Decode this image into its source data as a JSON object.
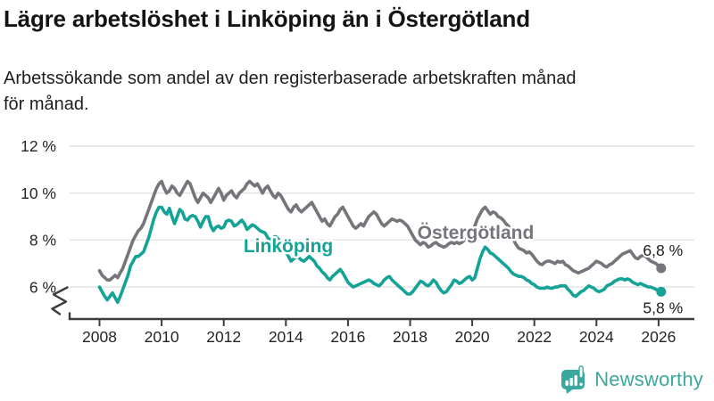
{
  "title": "Lägre arbetslöshet i Linköping än i Östergötland",
  "subtitle": "Arbetssökande som andel av den registerbaserade arbetskraften månad för månad.",
  "subtitle_lines": [
    "Arbetssökande som andel av den registerbaserade arbetskraften månad",
    "för månad."
  ],
  "logo": {
    "text": "Newsworthy",
    "icon": "newsworthy-speech-bubble-bar-chart-icon"
  },
  "colors": {
    "linkoping": "#14a396",
    "ostergotland": "#76757b",
    "grid": "#e4e4e4",
    "axis": "#3d3d3d",
    "text": "#252525",
    "logo_teal": "#3aa89f"
  },
  "chart_data": {
    "type": "line",
    "x_start": "2008-01",
    "x_end": "2026-02",
    "x_interval": "monthly",
    "x_ticks": [
      2008,
      2010,
      2012,
      2014,
      2016,
      2018,
      2020,
      2022,
      2024,
      2026
    ],
    "y_ticks": [
      {
        "value": 6,
        "label": "6 %"
      },
      {
        "value": 8,
        "label": "8 %"
      },
      {
        "value": 10,
        "label": "10 %"
      },
      {
        "value": 12,
        "label": "12 %"
      }
    ],
    "ylim": [
      4.6,
      12.5
    ],
    "axis_break": true,
    "grid": true,
    "legend_position": "inline-labels",
    "title": "",
    "xlabel": "",
    "ylabel": "",
    "series": [
      {
        "name": "Östergötland",
        "end_label": "6,8 %",
        "color": "#76757b",
        "values": [
          6.7,
          6.5,
          6.4,
          6.3,
          6.3,
          6.4,
          6.5,
          6.4,
          6.6,
          6.8,
          7.1,
          7.4,
          7.7,
          8.0,
          8.2,
          8.4,
          8.5,
          8.7,
          9.0,
          9.3,
          9.6,
          9.9,
          10.2,
          10.4,
          10.5,
          10.2,
          10.0,
          10.1,
          10.3,
          10.2,
          10.0,
          9.9,
          10.1,
          10.3,
          10.5,
          10.4,
          10.1,
          9.8,
          9.6,
          9.8,
          10.0,
          9.9,
          9.8,
          9.6,
          9.8,
          10.0,
          10.2,
          10.0,
          9.7,
          9.9,
          10.0,
          10.1,
          9.9,
          9.8,
          10.0,
          10.1,
          10.2,
          10.4,
          10.5,
          10.4,
          10.3,
          10.4,
          10.2,
          10.0,
          10.2,
          10.3,
          10.1,
          9.9,
          9.8,
          10.0,
          9.9,
          9.7,
          9.5,
          9.3,
          9.2,
          9.4,
          9.5,
          9.3,
          9.2,
          9.3,
          9.4,
          9.5,
          9.6,
          9.4,
          9.2,
          9.0,
          8.8,
          8.9,
          8.7,
          8.6,
          8.8,
          9.0,
          9.1,
          9.3,
          9.4,
          9.2,
          9.0,
          8.8,
          8.6,
          8.5,
          8.6,
          8.7,
          8.6,
          8.8,
          9.0,
          9.1,
          9.2,
          9.1,
          8.9,
          8.7,
          8.6,
          8.7,
          8.8,
          8.9,
          8.85,
          8.8,
          8.85,
          8.8,
          8.7,
          8.6,
          8.4,
          8.2,
          8.0,
          7.9,
          7.8,
          7.9,
          7.85,
          7.7,
          7.75,
          7.85,
          7.9,
          7.8,
          7.75,
          7.7,
          7.75,
          7.85,
          7.9,
          7.85,
          7.9,
          7.85,
          7.9,
          8.0,
          8.05,
          8.1,
          8.3,
          8.6,
          8.9,
          9.1,
          9.3,
          9.4,
          9.25,
          9.1,
          9.2,
          9.15,
          9.0,
          8.95,
          8.85,
          8.7,
          8.6,
          8.3,
          8.0,
          7.8,
          7.65,
          7.6,
          7.55,
          7.45,
          7.5,
          7.4,
          7.25,
          7.1,
          7.0,
          6.95,
          7.05,
          7.1,
          7.1,
          7.05,
          7.0,
          7.1,
          7.05,
          7.1,
          6.95,
          6.9,
          6.8,
          6.7,
          6.65,
          6.6,
          6.65,
          6.7,
          6.75,
          6.8,
          6.9,
          7.0,
          7.1,
          7.05,
          7.0,
          6.9,
          6.85,
          6.95,
          7.0,
          7.1,
          7.2,
          7.3,
          7.4,
          7.45,
          7.5,
          7.55,
          7.4,
          7.25,
          7.2,
          7.3,
          7.35,
          7.3,
          7.2,
          7.1,
          7.05,
          7.0,
          6.9,
          6.8
        ]
      },
      {
        "name": "Linköping",
        "end_label": "5,8 %",
        "color": "#14a396",
        "values": [
          6.0,
          5.8,
          5.6,
          5.45,
          5.6,
          5.75,
          5.55,
          5.35,
          5.6,
          5.9,
          6.2,
          6.5,
          6.9,
          7.1,
          7.3,
          7.3,
          7.4,
          7.5,
          7.8,
          8.1,
          8.5,
          8.9,
          9.2,
          9.4,
          9.4,
          9.2,
          9.1,
          9.35,
          9.0,
          8.7,
          9.0,
          9.3,
          9.2,
          8.9,
          8.85,
          9.0,
          9.05,
          9.0,
          8.8,
          8.55,
          8.8,
          9.0,
          9.0,
          8.6,
          8.4,
          8.55,
          8.6,
          8.5,
          8.55,
          8.8,
          8.85,
          8.8,
          8.6,
          8.65,
          8.75,
          8.85,
          8.7,
          8.45,
          8.55,
          8.65,
          8.6,
          8.5,
          8.4,
          8.35,
          8.3,
          8.1,
          8.0,
          8.1,
          8.15,
          8.05,
          7.9,
          7.7,
          7.5,
          7.3,
          7.1,
          7.2,
          7.3,
          7.25,
          7.15,
          7.1,
          7.2,
          7.3,
          7.2,
          7.1,
          6.9,
          6.8,
          6.65,
          6.55,
          6.4,
          6.3,
          6.45,
          6.55,
          6.65,
          6.75,
          6.6,
          6.4,
          6.2,
          6.1,
          6.0,
          6.05,
          6.1,
          6.15,
          6.2,
          6.25,
          6.3,
          6.25,
          6.15,
          6.1,
          6.05,
          6.15,
          6.3,
          6.4,
          6.45,
          6.3,
          6.2,
          6.1,
          6.0,
          5.9,
          5.8,
          5.7,
          5.7,
          5.8,
          5.95,
          6.1,
          6.25,
          6.2,
          6.1,
          6.05,
          6.15,
          6.3,
          6.2,
          6.0,
          5.85,
          5.75,
          5.8,
          5.95,
          6.1,
          6.3,
          6.25,
          6.15,
          6.2,
          6.3,
          6.4,
          6.45,
          6.3,
          6.4,
          6.8,
          7.2,
          7.5,
          7.7,
          7.6,
          7.45,
          7.4,
          7.3,
          7.2,
          7.1,
          7.0,
          6.9,
          6.8,
          6.65,
          6.55,
          6.5,
          6.45,
          6.45,
          6.4,
          6.3,
          6.25,
          6.15,
          6.1,
          6.0,
          5.95,
          5.95,
          5.95,
          6.0,
          5.95,
          5.95,
          6.0,
          6.0,
          6.05,
          6.05,
          6.05,
          5.9,
          5.8,
          5.65,
          5.6,
          5.7,
          5.8,
          5.85,
          5.95,
          6.05,
          6.0,
          5.95,
          5.85,
          5.8,
          5.85,
          5.9,
          6.05,
          6.1,
          6.15,
          6.25,
          6.3,
          6.35,
          6.35,
          6.3,
          6.35,
          6.3,
          6.2,
          6.15,
          6.1,
          6.15,
          6.1,
          6.05,
          6.0,
          6.0,
          5.95,
          5.9,
          5.85,
          5.8
        ]
      }
    ]
  }
}
